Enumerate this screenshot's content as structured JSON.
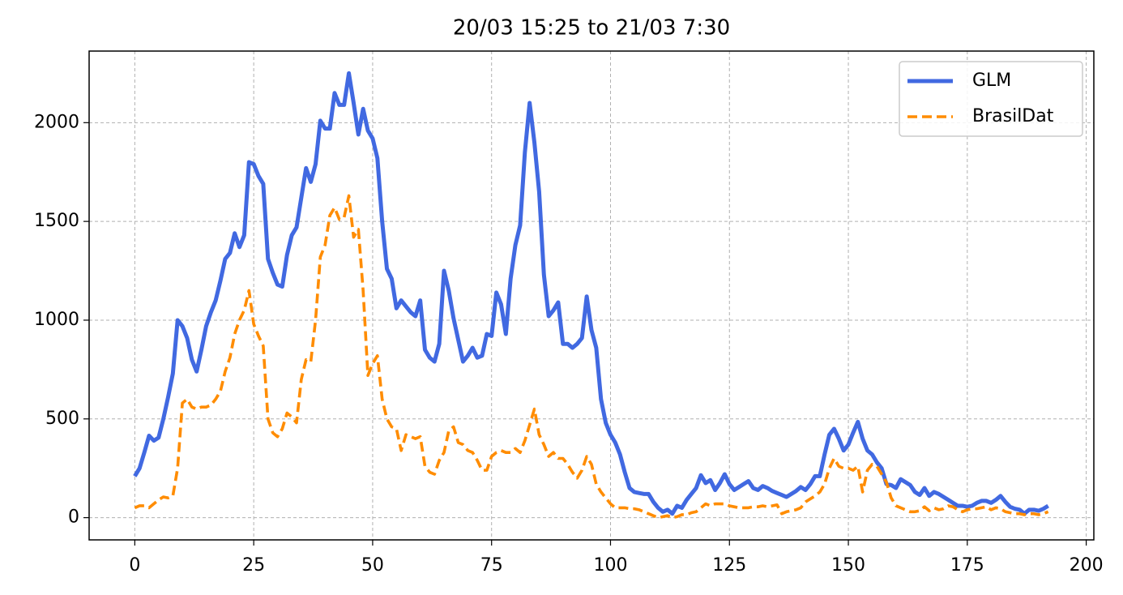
{
  "chart_data": {
    "type": "line",
    "title": "20/03 15:25 to 21/03 7:30",
    "x": [
      0,
      1,
      2,
      3,
      4,
      5,
      6,
      7,
      8,
      9,
      10,
      11,
      12,
      13,
      14,
      15,
      16,
      17,
      18,
      19,
      20,
      21,
      22,
      23,
      24,
      25,
      26,
      27,
      28,
      29,
      30,
      31,
      32,
      33,
      34,
      35,
      36,
      37,
      38,
      39,
      40,
      41,
      42,
      43,
      44,
      45,
      46,
      47,
      48,
      49,
      50,
      51,
      52,
      53,
      54,
      55,
      56,
      57,
      58,
      59,
      60,
      61,
      62,
      63,
      64,
      65,
      66,
      67,
      68,
      69,
      70,
      71,
      72,
      73,
      74,
      75,
      76,
      77,
      78,
      79,
      80,
      81,
      82,
      83,
      84,
      85,
      86,
      87,
      88,
      89,
      90,
      91,
      92,
      93,
      94,
      95,
      96,
      97,
      98,
      99,
      100,
      101,
      102,
      103,
      104,
      105,
      106,
      107,
      108,
      109,
      110,
      111,
      112,
      113,
      114,
      115,
      116,
      117,
      118,
      119,
      120,
      121,
      122,
      123,
      124,
      125,
      126,
      127,
      128,
      129,
      130,
      131,
      132,
      133,
      134,
      135,
      136,
      137,
      138,
      139,
      140,
      141,
      142,
      143,
      144,
      145,
      146,
      147,
      148,
      149,
      150,
      151,
      152,
      153,
      154,
      155,
      156,
      157,
      158,
      159,
      160,
      161,
      162,
      163,
      164,
      165,
      166,
      167,
      168,
      169,
      170,
      171,
      172,
      173,
      174,
      175,
      176,
      177,
      178,
      179,
      180,
      181,
      182,
      183,
      184,
      185,
      186,
      187,
      188,
      189,
      190,
      191,
      192
    ],
    "series": [
      {
        "name": "GLM",
        "color": "#4169e1",
        "linestyle": "solid",
        "values": [
          210,
          250,
          330,
          415,
          390,
          405,
          500,
          610,
          730,
          1000,
          970,
          910,
          800,
          740,
          850,
          970,
          1040,
          1100,
          1200,
          1310,
          1340,
          1440,
          1370,
          1430,
          1800,
          1790,
          1730,
          1690,
          1310,
          1240,
          1180,
          1170,
          1330,
          1430,
          1470,
          1620,
          1770,
          1700,
          1790,
          2010,
          1970,
          1970,
          2150,
          2090,
          2090,
          2250,
          2100,
          1940,
          2070,
          1960,
          1920,
          1820,
          1500,
          1260,
          1210,
          1060,
          1100,
          1070,
          1040,
          1020,
          1100,
          850,
          810,
          790,
          880,
          1250,
          1150,
          1010,
          900,
          790,
          820,
          860,
          810,
          820,
          930,
          920,
          1140,
          1080,
          930,
          1210,
          1380,
          1480,
          1850,
          2100,
          1900,
          1650,
          1230,
          1020,
          1050,
          1090,
          880,
          880,
          860,
          880,
          910,
          1120,
          950,
          860,
          600,
          480,
          420,
          380,
          320,
          230,
          150,
          130,
          125,
          120,
          120,
          80,
          50,
          30,
          40,
          20,
          60,
          50,
          90,
          120,
          150,
          215,
          175,
          190,
          140,
          175,
          220,
          170,
          140,
          155,
          170,
          185,
          150,
          140,
          160,
          150,
          135,
          125,
          115,
          105,
          120,
          135,
          155,
          140,
          170,
          210,
          210,
          320,
          420,
          450,
          400,
          340,
          370,
          430,
          485,
          400,
          340,
          320,
          280,
          250,
          170,
          165,
          150,
          195,
          180,
          165,
          130,
          115,
          150,
          110,
          130,
          120,
          105,
          90,
          75,
          60,
          60,
          55,
          60,
          75,
          85,
          85,
          75,
          90,
          110,
          80,
          55,
          45,
          40,
          20,
          40,
          40,
          35,
          45,
          60
        ]
      },
      {
        "name": "BrasilDat",
        "color": "#ff8c00",
        "linestyle": "dashed",
        "values": [
          50,
          60,
          60,
          50,
          70,
          90,
          105,
          100,
          110,
          250,
          580,
          600,
          560,
          550,
          560,
          560,
          570,
          600,
          640,
          740,
          810,
          930,
          1000,
          1050,
          1150,
          980,
          920,
          870,
          500,
          430,
          410,
          450,
          530,
          510,
          480,
          700,
          800,
          790,
          1000,
          1320,
          1380,
          1530,
          1570,
          1510,
          1520,
          1630,
          1420,
          1460,
          1150,
          720,
          780,
          820,
          600,
          500,
          460,
          450,
          340,
          420,
          410,
          400,
          410,
          260,
          230,
          220,
          290,
          330,
          440,
          460,
          380,
          370,
          340,
          330,
          290,
          240,
          240,
          310,
          330,
          340,
          330,
          330,
          350,
          330,
          390,
          470,
          550,
          420,
          370,
          310,
          330,
          300,
          300,
          270,
          230,
          200,
          240,
          310,
          270,
          170,
          130,
          100,
          70,
          50,
          50,
          50,
          45,
          45,
          40,
          30,
          20,
          10,
          0,
          5,
          10,
          0,
          5,
          15,
          15,
          25,
          30,
          50,
          70,
          60,
          70,
          70,
          70,
          60,
          55,
          50,
          50,
          50,
          55,
          55,
          60,
          55,
          60,
          65,
          20,
          30,
          35,
          40,
          50,
          80,
          95,
          110,
          130,
          170,
          250,
          300,
          260,
          250,
          250,
          240,
          260,
          130,
          240,
          270,
          260,
          220,
          180,
          100,
          60,
          50,
          40,
          30,
          30,
          35,
          55,
          35,
          50,
          40,
          45,
          60,
          55,
          40,
          30,
          40,
          45,
          45,
          50,
          55,
          40,
          50,
          45,
          30,
          25,
          20,
          20,
          15,
          20,
          20,
          15,
          20,
          30
        ]
      }
    ],
    "xlim": [
      -9.6,
      201.6
    ],
    "xticks": [
      0,
      25,
      50,
      75,
      100,
      125,
      150,
      175,
      200
    ],
    "ylim": [
      -112.5,
      2362.5
    ],
    "yticks": [
      0,
      500,
      1000,
      1500,
      2000
    ],
    "grid": true,
    "legend": "upper right"
  }
}
